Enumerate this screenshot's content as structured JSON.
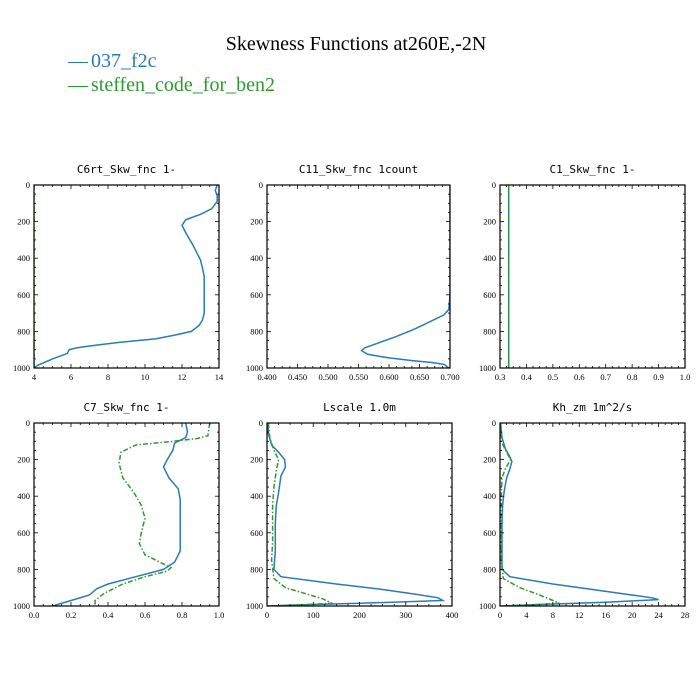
{
  "title": "Skewness Functions at260E,-2N",
  "legend": [
    {
      "marker": "—",
      "name": "037_f2c",
      "color": "#2a7ab8"
    },
    {
      "marker": "—",
      "name": "steffen_code_for_ben2",
      "color": "#2e9a2e"
    }
  ],
  "colors": {
    "series1": "#2a7ab8",
    "series2": "#2e9a2e"
  },
  "chart_data": [
    {
      "type": "line",
      "title": "C6rt_Skw_fnc  1-",
      "xlim": [
        4,
        14
      ],
      "ylim": [
        1000,
        0
      ],
      "xticks": [
        "4",
        "6",
        "8",
        "10",
        "12",
        "14"
      ],
      "yticks": [
        "0",
        "200",
        "400",
        "600",
        "800",
        "1000"
      ],
      "series": [
        {
          "color": "#2a7ab8",
          "dash": "solid",
          "points": [
            [
              13.9,
              0
            ],
            [
              13.8,
              30
            ],
            [
              13.9,
              60
            ],
            [
              13.9,
              90
            ],
            [
              13.6,
              130
            ],
            [
              13.0,
              160
            ],
            [
              12.2,
              190
            ],
            [
              12.0,
              220
            ],
            [
              12.2,
              260
            ],
            [
              12.6,
              330
            ],
            [
              12.8,
              370
            ],
            [
              13.0,
              410
            ],
            [
              13.1,
              450
            ],
            [
              13.2,
              500
            ],
            [
              13.2,
              600
            ],
            [
              13.2,
              700
            ],
            [
              13.1,
              740
            ],
            [
              12.9,
              770
            ],
            [
              12.5,
              800
            ],
            [
              11.6,
              820
            ],
            [
              10.6,
              840
            ],
            [
              8.6,
              860
            ],
            [
              7.0,
              880
            ],
            [
              6.3,
              890
            ],
            [
              5.9,
              900
            ],
            [
              5.8,
              920
            ],
            [
              5.0,
              950
            ],
            [
              4.2,
              985
            ],
            [
              4.0,
              1000
            ]
          ]
        },
        {
          "color": "#2e9a2e",
          "dash": "dashdot",
          "points": [
            [
              4.0,
              0
            ],
            [
              4.0,
              1000
            ]
          ]
        }
      ]
    },
    {
      "type": "line",
      "title": "C11_Skw_fnc  1count",
      "xlim": [
        0.4,
        0.7
      ],
      "ylim": [
        1000,
        0
      ],
      "xticks": [
        "0.400",
        "0.450",
        "0.500",
        "0.550",
        "0.600",
        "0.650",
        "0.700"
      ],
      "yticks": [
        "0",
        "200",
        "400",
        "600",
        "800",
        "1000"
      ],
      "series": [
        {
          "color": "#2a7ab8",
          "dash": "solid",
          "points": [
            [
              0.7,
              0
            ],
            [
              0.7,
              300
            ],
            [
              0.7,
              600
            ],
            [
              0.698,
              680
            ],
            [
              0.69,
              710
            ],
            [
              0.665,
              750
            ],
            [
              0.64,
              790
            ],
            [
              0.61,
              830
            ],
            [
              0.585,
              860
            ],
            [
              0.56,
              890
            ],
            [
              0.555,
              905
            ],
            [
              0.565,
              925
            ],
            [
              0.6,
              945
            ],
            [
              0.64,
              960
            ],
            [
              0.67,
              970
            ],
            [
              0.69,
              980
            ],
            [
              0.698,
              1000
            ]
          ]
        }
      ]
    },
    {
      "type": "line",
      "title": "C1_Skw_fnc  1-",
      "xlim": [
        0.3,
        1.0
      ],
      "ylim": [
        1000,
        0
      ],
      "xticks": [
        "0.3",
        "0.4",
        "0.5",
        "0.6",
        "0.7",
        "0.8",
        "0.9",
        "1.0"
      ],
      "yticks": [
        "0",
        "200",
        "400",
        "600",
        "800",
        "1000"
      ],
      "series": [
        {
          "color": "#2a7ab8",
          "dash": "solid",
          "points": [
            [
              0.333,
              0
            ],
            [
              0.333,
              1000
            ]
          ]
        },
        {
          "color": "#2e9a2e",
          "dash": "dashdot",
          "points": [
            [
              0.333,
              0
            ],
            [
              0.333,
              1000
            ]
          ]
        }
      ]
    },
    {
      "type": "line",
      "title": "C7_Skw_fnc  1-",
      "xlim": [
        0.0,
        1.0
      ],
      "ylim": [
        1000,
        0
      ],
      "xticks": [
        "0.0",
        "0.2",
        "0.4",
        "0.6",
        "0.8",
        "1.0"
      ],
      "yticks": [
        "0",
        "200",
        "400",
        "600",
        "800",
        "1000"
      ],
      "series": [
        {
          "color": "#2a7ab8",
          "dash": "solid",
          "points": [
            [
              0.82,
              0
            ],
            [
              0.83,
              50
            ],
            [
              0.82,
              80
            ],
            [
              0.76,
              110
            ],
            [
              0.75,
              150
            ],
            [
              0.72,
              200
            ],
            [
              0.7,
              240
            ],
            [
              0.73,
              300
            ],
            [
              0.78,
              360
            ],
            [
              0.79,
              420
            ],
            [
              0.79,
              600
            ],
            [
              0.79,
              700
            ],
            [
              0.76,
              760
            ],
            [
              0.7,
              800
            ],
            [
              0.55,
              840
            ],
            [
              0.4,
              880
            ],
            [
              0.34,
              905
            ],
            [
              0.3,
              940
            ],
            [
              0.2,
              970
            ],
            [
              0.1,
              1000
            ]
          ]
        },
        {
          "color": "#2e9a2e",
          "dash": "dashdot",
          "points": [
            [
              0.95,
              0
            ],
            [
              0.94,
              70
            ],
            [
              0.88,
              85
            ],
            [
              0.75,
              100
            ],
            [
              0.55,
              120
            ],
            [
              0.47,
              160
            ],
            [
              0.46,
              220
            ],
            [
              0.48,
              300
            ],
            [
              0.54,
              380
            ],
            [
              0.58,
              450
            ],
            [
              0.6,
              520
            ],
            [
              0.58,
              600
            ],
            [
              0.57,
              660
            ],
            [
              0.6,
              720
            ],
            [
              0.68,
              760
            ],
            [
              0.74,
              790
            ],
            [
              0.72,
              810
            ],
            [
              0.6,
              840
            ],
            [
              0.48,
              880
            ],
            [
              0.38,
              930
            ],
            [
              0.33,
              970
            ],
            [
              0.33,
              1000
            ]
          ]
        }
      ]
    },
    {
      "type": "line",
      "title": "Lscale  1.0m",
      "xlim": [
        0,
        400
      ],
      "ylim": [
        1000,
        0
      ],
      "xticks": [
        "0",
        "100",
        "200",
        "300",
        "400"
      ],
      "yticks": [
        "0",
        "200",
        "400",
        "600",
        "800",
        "1000"
      ],
      "series": [
        {
          "color": "#2a7ab8",
          "dash": "solid",
          "points": [
            [
              2,
              0
            ],
            [
              3,
              60
            ],
            [
              10,
              120
            ],
            [
              25,
              160
            ],
            [
              38,
              200
            ],
            [
              40,
              240
            ],
            [
              30,
              290
            ],
            [
              25,
              380
            ],
            [
              20,
              450
            ],
            [
              18,
              550
            ],
            [
              18,
              700
            ],
            [
              15,
              800
            ],
            [
              30,
              840
            ],
            [
              150,
              880
            ],
            [
              250,
              910
            ],
            [
              320,
              935
            ],
            [
              370,
              955
            ],
            [
              380,
              970
            ],
            [
              200,
              985
            ],
            [
              50,
              995
            ],
            [
              0,
              1000
            ]
          ]
        },
        {
          "color": "#2e9a2e",
          "dash": "dashdot",
          "points": [
            [
              3,
              0
            ],
            [
              6,
              80
            ],
            [
              15,
              150
            ],
            [
              25,
              200
            ],
            [
              20,
              260
            ],
            [
              15,
              350
            ],
            [
              12,
              450
            ],
            [
              12,
              550
            ],
            [
              12,
              650
            ],
            [
              10,
              750
            ],
            [
              15,
              850
            ],
            [
              40,
              900
            ],
            [
              80,
              930
            ],
            [
              120,
              960
            ],
            [
              140,
              985
            ],
            [
              20,
              1000
            ]
          ]
        }
      ]
    },
    {
      "type": "line",
      "title": "Kh_zm  1m^2/s",
      "xlim": [
        0,
        28
      ],
      "ylim": [
        1000,
        0
      ],
      "xticks": [
        "0",
        "4",
        "8",
        "12",
        "16",
        "20",
        "24",
        "28"
      ],
      "yticks": [
        "0",
        "200",
        "400",
        "600",
        "800",
        "1000"
      ],
      "series": [
        {
          "color": "#2a7ab8",
          "dash": "solid",
          "points": [
            [
              0.1,
              0
            ],
            [
              0.3,
              80
            ],
            [
              0.8,
              140
            ],
            [
              1.4,
              180
            ],
            [
              1.8,
              210
            ],
            [
              1.5,
              250
            ],
            [
              1.0,
              300
            ],
            [
              0.6,
              380
            ],
            [
              0.4,
              450
            ],
            [
              0.3,
              550
            ],
            [
              0.3,
              700
            ],
            [
              0.3,
              800
            ],
            [
              1.5,
              840
            ],
            [
              8,
              880
            ],
            [
              14,
              910
            ],
            [
              19,
              935
            ],
            [
              23,
              955
            ],
            [
              24,
              965
            ],
            [
              16,
              980
            ],
            [
              6,
              992
            ],
            [
              0,
              1000
            ]
          ]
        },
        {
          "color": "#2e9a2e",
          "dash": "dashdot",
          "points": [
            [
              0.1,
              0
            ],
            [
              0.2,
              100
            ],
            [
              1.0,
              160
            ],
            [
              1.6,
              200
            ],
            [
              0.8,
              250
            ],
            [
              0.3,
              300
            ],
            [
              0.2,
              400
            ],
            [
              0.2,
              600
            ],
            [
              0.2,
              750
            ],
            [
              0.5,
              850
            ],
            [
              3,
              900
            ],
            [
              6,
              940
            ],
            [
              8,
              970
            ],
            [
              9,
              985
            ],
            [
              1,
              1000
            ]
          ]
        }
      ]
    }
  ]
}
